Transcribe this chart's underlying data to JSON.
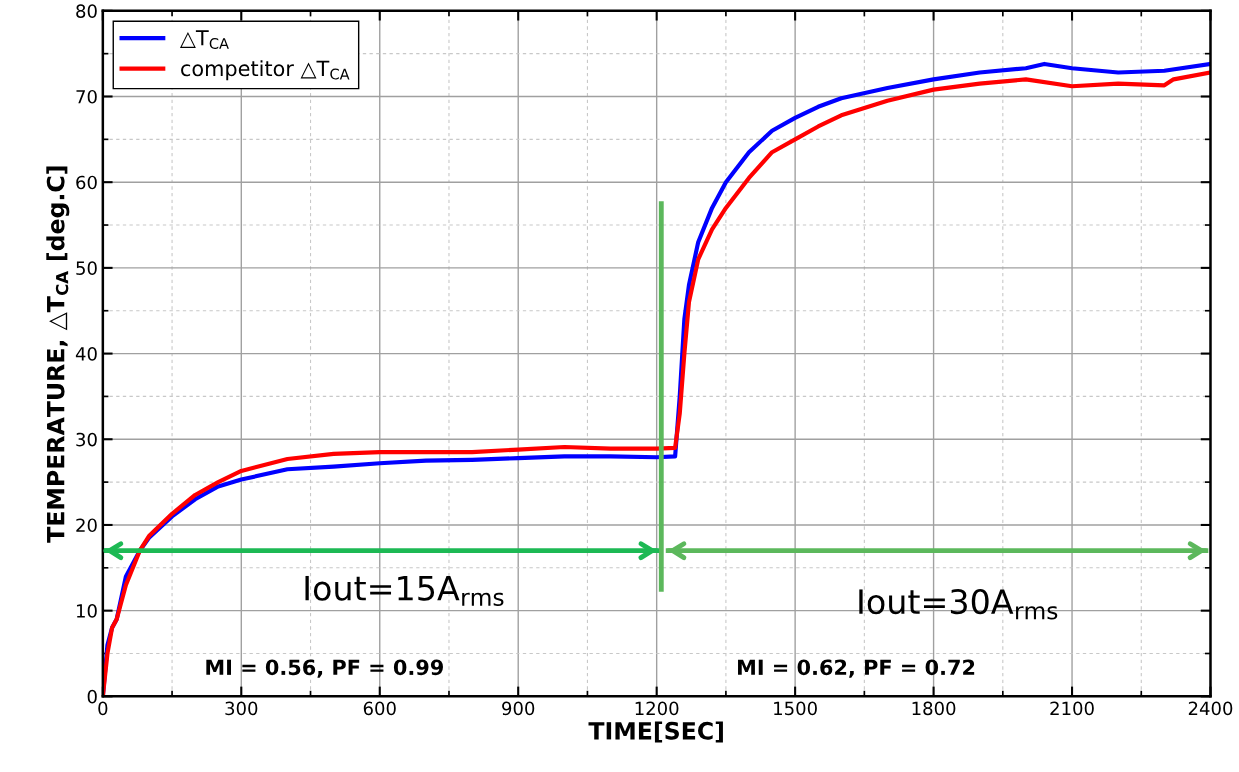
{
  "chart_data": {
    "type": "line",
    "xlabel": "TIME[SEC]",
    "ylabel": "TEMPERATURE, △T$_{CA}$ [deg.C]",
    "xlim": [
      0,
      2400
    ],
    "xticks": [
      0,
      300,
      600,
      900,
      1200,
      1500,
      1800,
      2100,
      2400
    ],
    "ylim": [
      0,
      80
    ],
    "yticks": [
      0,
      10,
      20,
      30,
      40,
      50,
      60,
      70,
      80
    ],
    "grid": true,
    "legend": "top left",
    "line_style": "solid",
    "annotations": [
      "Iout=15A$_{rms}$",
      "Iout=30A$_{rms}$",
      "MI = 0.56, PF = 0.99",
      "MI = 0.62, PF = 0.72"
    ],
    "series": [
      {
        "name": "△T$_{CA}$",
        "color": "#0000ff",
        "x": [
          0,
          10,
          20,
          30,
          50,
          80,
          100,
          150,
          200,
          250,
          300,
          400,
          500,
          600,
          700,
          800,
          900,
          1000,
          1100,
          1200,
          1240,
          1250,
          1260,
          1270,
          1290,
          1320,
          1350,
          1400,
          1450,
          1500,
          1550,
          1600,
          1700,
          1800,
          1900,
          2000,
          2040,
          2100,
          2200,
          2300,
          2400
        ],
        "values": [
          0,
          6,
          8,
          9,
          14,
          17,
          18.5,
          21,
          23,
          24.5,
          25.3,
          26.5,
          26.8,
          27.2,
          27.5,
          27.6,
          27.8,
          28,
          28,
          27.9,
          28,
          35,
          44,
          48,
          53,
          57,
          60,
          63.5,
          66,
          67.5,
          68.8,
          69.8,
          71,
          72,
          72.8,
          73.3,
          73.8,
          73.3,
          72.8,
          73,
          73.8
        ]
      },
      {
        "name": "competitor △T$_{CA}$",
        "color": "#ff0000",
        "x": [
          0,
          10,
          20,
          30,
          50,
          80,
          100,
          150,
          200,
          250,
          300,
          400,
          500,
          600,
          700,
          800,
          900,
          1000,
          1100,
          1200,
          1240,
          1250,
          1260,
          1270,
          1290,
          1320,
          1350,
          1400,
          1450,
          1500,
          1550,
          1600,
          1700,
          1800,
          1900,
          2000,
          2100,
          2200,
          2300,
          2320,
          2400
        ],
        "values": [
          0,
          5,
          8,
          9,
          13,
          17,
          18.7,
          21.3,
          23.5,
          25,
          26.3,
          27.7,
          28.3,
          28.5,
          28.5,
          28.5,
          28.8,
          29.1,
          28.9,
          28.9,
          29,
          33,
          40,
          46,
          51,
          54.5,
          57,
          60.5,
          63.5,
          65,
          66.5,
          67.8,
          69.5,
          70.8,
          71.5,
          72,
          71.2,
          71.5,
          71.3,
          72,
          72.8
        ]
      },
      {
        "type": "line",
        "color": "#5cb85c",
        "x": [
          1210,
          1210
        ],
        "values": [
          12.5,
          57.5
        ]
      },
      {
        "type": "line",
        "color": "#1db954",
        "x": [
          5,
          1200
        ],
        "values": [
          17,
          17
        ]
      },
      {
        "type": "line",
        "color": "#5cb85c",
        "x": [
          1225,
          2390
        ],
        "values": [
          17,
          17
        ]
      }
    ]
  }
}
